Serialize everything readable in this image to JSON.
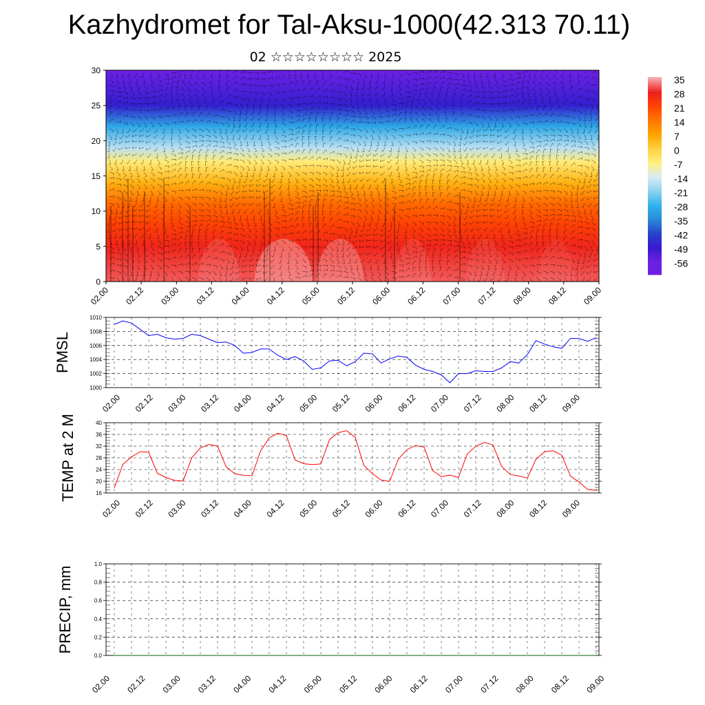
{
  "header": {
    "title": "Kazhydromet for Tal-Aksu-1000(42.313 70.11)",
    "subtitle": "02 ☆☆☆☆☆☆☆☆ 2025"
  },
  "chart_data": [
    {
      "type": "heatmap",
      "description_of_field": "temperature by altitude with wind barbs",
      "ylim": [
        0,
        30
      ],
      "yticks": [
        "0",
        "5",
        "10",
        "15",
        "20",
        "25",
        "30"
      ],
      "xticks": [
        "02.00",
        "02.12",
        "03.00",
        "03.12",
        "04.00",
        "04.12",
        "05.00",
        "05.12",
        "06.00",
        "06.12",
        "07.00",
        "07.12",
        "08.00",
        "08.12",
        "09.00"
      ],
      "colorbar": {
        "labels": [
          "35",
          "28",
          "21",
          "14",
          "7",
          "0",
          "-7",
          "-14",
          "-21",
          "-28",
          "-35",
          "-42",
          "-49",
          "-56"
        ],
        "colors": [
          "#f6a8a8",
          "#ee2020",
          "#ff4400",
          "#ff7700",
          "#ffa500",
          "#ffd040",
          "#fff080",
          "#d8ecf4",
          "#8fd0ef",
          "#30b4ec",
          "#2a8ad8",
          "#2546c8",
          "#3818d0",
          "#6c20e4"
        ]
      },
      "levels": [
        0,
        5,
        8,
        11,
        14,
        17,
        19,
        22,
        25,
        30
      ],
      "level_temps": [
        31,
        27,
        22,
        16,
        5,
        -6,
        -17,
        -30,
        -48,
        -56
      ]
    },
    {
      "type": "line",
      "ylabel": "PMSL",
      "ylim": [
        1000,
        1010
      ],
      "yticks": [
        "1000",
        "1002",
        "1004",
        "1006",
        "1008",
        "1010"
      ],
      "xticks": [
        "02.00",
        "02.12",
        "03.00",
        "03.12",
        "04.00",
        "04.12",
        "05.00",
        "05.12",
        "06.00",
        "06.12",
        "07.00",
        "07.12",
        "08.00",
        "08.12",
        "09.00"
      ],
      "color": "#0000ff",
      "values": [
        1009.0,
        1009.5,
        1009.2,
        1008.3,
        1007.4,
        1007.6,
        1007.1,
        1006.9,
        1007.0,
        1007.6,
        1007.4,
        1006.9,
        1006.4,
        1006.5,
        1006.0,
        1004.9,
        1005.0,
        1005.5,
        1005.5,
        1004.6,
        1004.0,
        1004.4,
        1003.8,
        1002.6,
        1002.8,
        1003.8,
        1003.9,
        1003.1,
        1003.7,
        1004.9,
        1004.8,
        1003.5,
        1004.1,
        1004.5,
        1004.3,
        1003.2,
        1002.6,
        1002.3,
        1001.8,
        1000.7,
        1002.0,
        1002.0,
        1002.4,
        1002.3,
        1002.3,
        1002.8,
        1003.7,
        1003.5,
        1004.7,
        1006.7,
        1006.2,
        1005.8,
        1005.6,
        1007.0,
        1007.0,
        1006.6,
        1007.1
      ]
    },
    {
      "type": "line",
      "ylabel": "TEMP at 2 M",
      "ylim": [
        16,
        40
      ],
      "yticks": [
        "16",
        "20",
        "24",
        "28",
        "32",
        "36",
        "40"
      ],
      "xticks": [
        "02.00",
        "02.12",
        "03.00",
        "03.12",
        "04.00",
        "04.12",
        "05.00",
        "05.12",
        "06.00",
        "06.12",
        "07.00",
        "07.12",
        "08.00",
        "08.12",
        "09.00"
      ],
      "color": "#ff0000",
      "values": [
        17.8,
        25.8,
        28.3,
        30.1,
        29.9,
        22.7,
        21.3,
        20.3,
        20.1,
        28.0,
        31.4,
        32.6,
        32.0,
        24.9,
        22.6,
        22.0,
        21.9,
        30.4,
        34.8,
        36.4,
        35.6,
        27.3,
        26.0,
        25.7,
        25.9,
        34.2,
        36.6,
        37.3,
        35.0,
        25.4,
        22.6,
        20.4,
        20.0,
        27.5,
        30.8,
        32.2,
        31.7,
        23.6,
        21.6,
        22.1,
        21.3,
        29.3,
        31.9,
        33.3,
        32.4,
        25.1,
        22.3,
        21.8,
        21.1,
        27.5,
        30.1,
        30.4,
        28.9,
        21.8,
        19.8,
        17.2,
        16.9
      ]
    },
    {
      "type": "line",
      "ylabel": "PRECIP, mm",
      "ylim": [
        0,
        1
      ],
      "yticks": [
        "0.0",
        "0.2",
        "0.4",
        "0.6",
        "0.8",
        "1.0"
      ],
      "xticks": [
        "02.00",
        "02.12",
        "03.00",
        "03.12",
        "04.00",
        "04.12",
        "05.00",
        "05.12",
        "06.00",
        "06.12",
        "07.00",
        "07.12",
        "08.00",
        "08.12",
        "09.00"
      ],
      "color": "#006600",
      "values": [
        0,
        0,
        0,
        0,
        0,
        0,
        0,
        0,
        0,
        0,
        0,
        0,
        0,
        0,
        0,
        0,
        0,
        0,
        0,
        0,
        0,
        0,
        0,
        0,
        0,
        0,
        0,
        0,
        0,
        0,
        0,
        0,
        0,
        0,
        0,
        0,
        0,
        0,
        0,
        0,
        0,
        0,
        0,
        0,
        0,
        0,
        0,
        0,
        0,
        0,
        0,
        0,
        0,
        0,
        0,
        0,
        0
      ]
    }
  ]
}
